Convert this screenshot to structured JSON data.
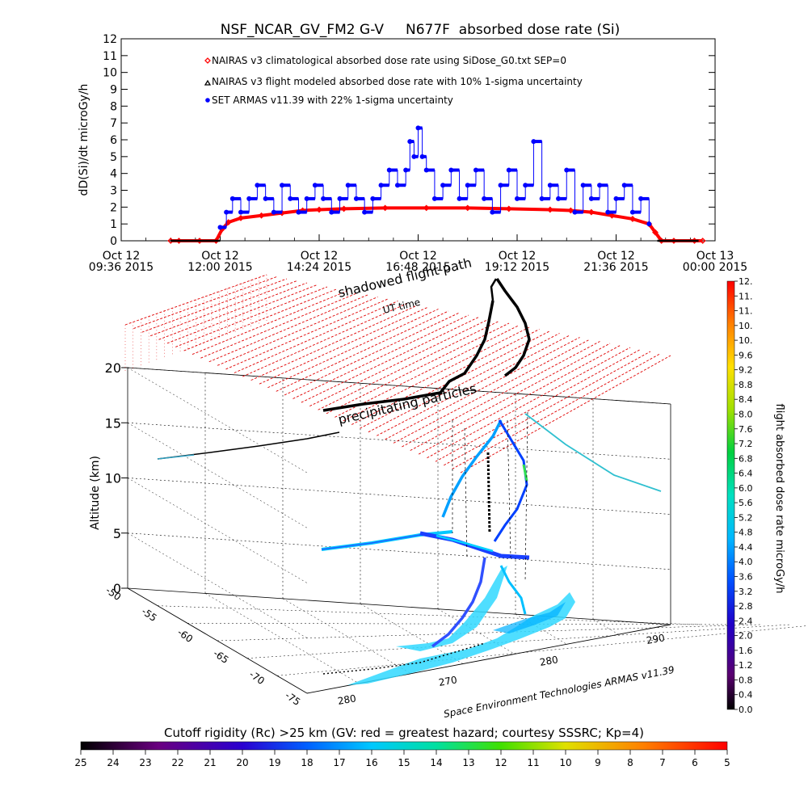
{
  "chart_data": [
    {
      "type": "line",
      "title": "NSF_NCAR_GV_FM2 G-V     N677F  absorbed dose rate (Si)",
      "ylabel": "dD(Si)/dt microGy/h",
      "ylim": [
        0,
        12
      ],
      "y_ticks": [
        "0",
        "1",
        "2",
        "3",
        "4",
        "5",
        "6",
        "7",
        "8",
        "9",
        "10",
        "11",
        "12"
      ],
      "x_ticks": [
        {
          "l1": "Oct 12",
          "l2": "09:36 2015",
          "h": 9.6
        },
        {
          "l1": "Oct 12",
          "l2": "12:00 2015",
          "h": 12.0
        },
        {
          "l1": "Oct 12",
          "l2": "14:24 2015",
          "h": 14.4
        },
        {
          "l1": "Oct 12",
          "l2": "16:48 2015",
          "h": 16.8
        },
        {
          "l1": "Oct 12",
          "l2": "19:12 2015",
          "h": 19.2
        },
        {
          "l1": "Oct 12",
          "l2": "21:36 2015",
          "h": 21.6
        },
        {
          "l1": "Oct 13",
          "l2": "00:00 2015",
          "h": 24.0
        }
      ],
      "xlim_hours": [
        9.6,
        24.0
      ],
      "legend": [
        {
          "text": "NAIRAS v3 climatological absorbed dose rate using SiDose_G0.txt SEP=0",
          "color": "#ff0000",
          "marker": "diamond"
        },
        {
          "text": "NAIRAS v3 flight modeled absorbed dose rate with 10% 1-sigma uncertainty",
          "color": "#000000",
          "marker": "triangle"
        },
        {
          "text": "SET ARMAS v11.39 with 22% 1-sigma uncertainty",
          "color": "#0000ff",
          "marker": "dot"
        }
      ],
      "series": [
        {
          "name": "NAIRAS v3 climatological",
          "color": "#ff0000",
          "x": [
            10.8,
            11.0,
            11.5,
            11.9,
            12.05,
            12.2,
            12.5,
            13.0,
            13.5,
            14.0,
            14.4,
            15.0,
            16.0,
            17.0,
            18.0,
            19.0,
            20.0,
            20.5,
            21.0,
            21.5,
            22.0,
            22.4,
            22.55,
            22.7,
            23.0,
            23.5,
            23.7
          ],
          "y": [
            0,
            0,
            0,
            0,
            0.7,
            1.1,
            1.35,
            1.5,
            1.65,
            1.8,
            1.85,
            1.9,
            1.95,
            1.95,
            1.95,
            1.9,
            1.85,
            1.8,
            1.7,
            1.5,
            1.3,
            1.0,
            0.5,
            0,
            0,
            0,
            0
          ]
        },
        {
          "name": "SET ARMAS v11.39",
          "color": "#0000ff",
          "x": [
            12.0,
            12.15,
            12.3,
            12.5,
            12.7,
            12.9,
            13.1,
            13.3,
            13.5,
            13.7,
            13.9,
            14.1,
            14.3,
            14.5,
            14.7,
            14.9,
            15.1,
            15.3,
            15.5,
            15.7,
            15.9,
            16.1,
            16.3,
            16.5,
            16.6,
            16.7,
            16.8,
            16.9,
            17.0,
            17.2,
            17.4,
            17.6,
            17.8,
            18.0,
            18.2,
            18.4,
            18.6,
            18.8,
            19.0,
            19.2,
            19.4,
            19.6,
            19.8,
            20.0,
            20.2,
            20.4,
            20.6,
            20.8,
            21.0,
            21.2,
            21.4,
            21.6,
            21.8,
            22.0,
            22.2,
            22.4
          ],
          "y": [
            0.8,
            1.7,
            2.5,
            1.7,
            2.5,
            3.3,
            2.5,
            1.7,
            3.3,
            2.5,
            1.7,
            2.5,
            3.3,
            2.5,
            1.7,
            2.5,
            3.3,
            2.5,
            1.7,
            2.5,
            3.3,
            4.2,
            3.3,
            4.2,
            5.9,
            5.0,
            6.7,
            5.0,
            4.2,
            2.5,
            3.3,
            4.2,
            2.5,
            3.3,
            4.2,
            2.5,
            1.7,
            3.3,
            4.2,
            2.5,
            3.3,
            5.9,
            2.5,
            3.3,
            2.5,
            4.2,
            1.7,
            3.3,
            2.5,
            3.3,
            1.7,
            2.5,
            3.3,
            1.7,
            2.5,
            1.0
          ]
        }
      ]
    },
    {
      "type": "scatter",
      "zlabel": "Altitude (km)",
      "z_ticks": [
        "0",
        "5",
        "10",
        "15",
        "20"
      ],
      "lat_ticks": [
        "-50",
        "-55",
        "-60",
        "-65",
        "-70",
        "-75"
      ],
      "lon_ticks": [
        "280",
        "270",
        "280",
        "290"
      ],
      "annotations": [
        "shadowed flight path",
        "UT time",
        "precipitating particles"
      ],
      "credit": "Space Environment Technologies ARMAS v11.39",
      "colorbar_label": "flight absorbed dose rate microGy/h",
      "colorbar_ticks": [
        "0.0",
        "0.4",
        "0.8",
        "1.2",
        "1.6",
        "2.0",
        "2.4",
        "2.8",
        "3.2",
        "3.6",
        "4.0",
        "4.4",
        "4.8",
        "5.2",
        "5.6",
        "6.0",
        "6.4",
        "6.8",
        "7.2",
        "7.6",
        "8.0",
        "8.4",
        "8.8",
        "9.2",
        "9.6",
        "10.",
        "10.",
        "11.",
        "11.",
        "12."
      ],
      "cutoff_label": "Cutoff rigidity (Rc) >25 km (GV: red = greatest hazard; courtesy SSSRC; Kp=4)",
      "cutoff_ticks": [
        "25",
        "24",
        "23",
        "22",
        "21",
        "20",
        "19",
        "18",
        "17",
        "16",
        "15",
        "14",
        "13",
        "12",
        "11",
        "10",
        "9",
        "8",
        "7",
        "6",
        "5"
      ]
    }
  ]
}
